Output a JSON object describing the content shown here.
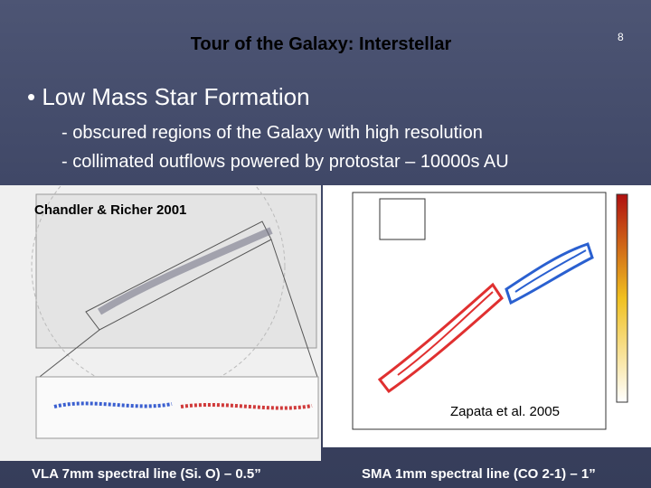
{
  "slide_number": "8",
  "title": "Tour of the Galaxy: Interstellar",
  "bullet": "Low Mass Star Formation",
  "sub_bullets": [
    "- obscured regions of the Galaxy with high resolution",
    "- collimated outflows powered by protostar – 10000s AU"
  ],
  "figures": [
    {
      "credit": "Chandler & Richer 2001",
      "caption": "VLA 7mm spectral line (Si. O) – 0.5”"
    },
    {
      "credit": "Zapata et al.  2005",
      "caption": "SMA 1mm spectral line (CO 2-1) – 1”"
    }
  ]
}
